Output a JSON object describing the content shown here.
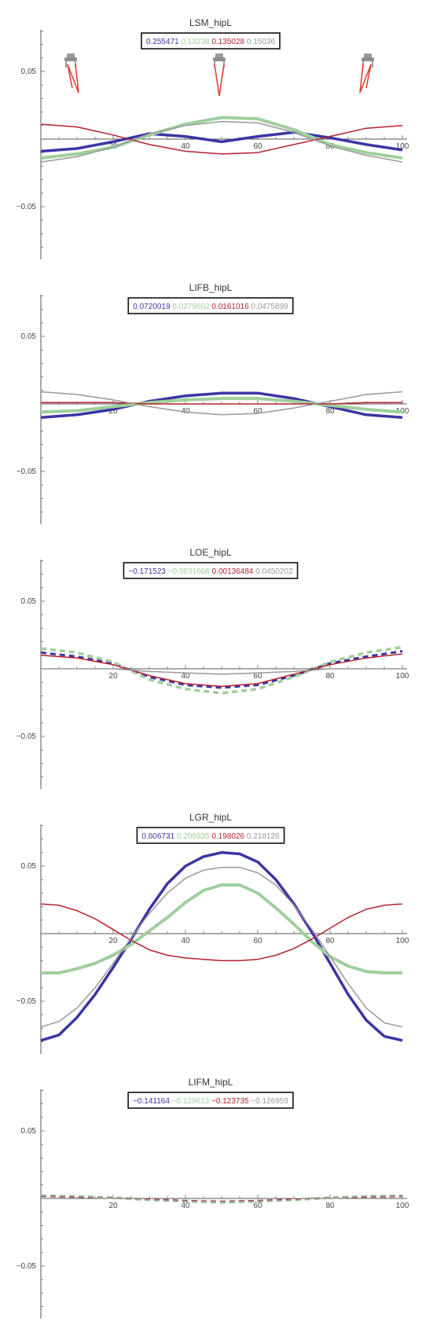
{
  "chart_data": [
    {
      "type": "line",
      "title": "LSM_hipL",
      "xlim": [
        0,
        100
      ],
      "ylim": [
        -0.085,
        0.085
      ],
      "xticks": [
        20,
        40,
        60,
        80,
        100
      ],
      "yticks": [
        -0.05,
        0.05
      ],
      "xtick_labels": [
        "20",
        "40",
        "60",
        "80",
        "100"
      ],
      "ytick_labels": [
        "−0.05",
        "0.05"
      ],
      "legend_values": [
        "0.255471",
        "0.13238",
        "0.135028",
        "0.15036"
      ],
      "has_figure_icons": true,
      "series": [
        {
          "color": "#3b35a4",
          "dashed": false,
          "width": 3.5,
          "x": [
            0,
            10,
            20,
            30,
            40,
            50,
            60,
            70,
            80,
            90,
            100
          ],
          "y": [
            -0.009,
            -0.007,
            -0.002,
            0.004,
            0.002,
            -0.002,
            0.002,
            0.005,
            0.001,
            -0.004,
            -0.008
          ]
        },
        {
          "color": "#9fcf9c",
          "dashed": false,
          "width": 4,
          "x": [
            0,
            10,
            20,
            30,
            40,
            50,
            60,
            70,
            80,
            90,
            100
          ],
          "y": [
            -0.014,
            -0.011,
            -0.006,
            0.003,
            0.011,
            0.016,
            0.015,
            0.007,
            -0.004,
            -0.01,
            -0.014
          ]
        },
        {
          "color": "#b5202d",
          "dashed": false,
          "width": 1.5,
          "x": [
            0,
            10,
            20,
            30,
            40,
            50,
            60,
            70,
            80,
            90,
            100
          ],
          "y": [
            0.011,
            0.009,
            0.003,
            -0.004,
            -0.009,
            -0.011,
            -0.01,
            -0.004,
            0.002,
            0.008,
            0.01
          ]
        },
        {
          "color": "#999999",
          "dashed": false,
          "width": 1.5,
          "x": [
            0,
            10,
            20,
            30,
            40,
            50,
            60,
            70,
            80,
            90,
            100
          ],
          "y": [
            -0.017,
            -0.013,
            -0.006,
            0.004,
            0.01,
            0.013,
            0.012,
            0.005,
            -0.005,
            -0.012,
            -0.017
          ]
        }
      ]
    },
    {
      "type": "line",
      "title": "LIFB_hipL",
      "xlim": [
        0,
        100
      ],
      "ylim": [
        -0.085,
        0.085
      ],
      "xticks": [
        20,
        40,
        60,
        80,
        100
      ],
      "yticks": [
        -0.05,
        0.05
      ],
      "xtick_labels": [
        "20",
        "40",
        "60",
        "80",
        "100"
      ],
      "ytick_labels": [
        "−0.05",
        "0.05"
      ],
      "legend_values": [
        "0.0720019",
        "0.0279602",
        "0.0161016",
        "0.0475899"
      ],
      "has_figure_icons": false,
      "series": [
        {
          "color": "#3b35a4",
          "dashed": false,
          "width": 3.5,
          "x": [
            0,
            10,
            20,
            30,
            40,
            50,
            60,
            70,
            80,
            90,
            100
          ],
          "y": [
            -0.01,
            -0.008,
            -0.004,
            0.002,
            0.006,
            0.008,
            0.008,
            0.004,
            -0.002,
            -0.008,
            -0.01
          ]
        },
        {
          "color": "#9fcf9c",
          "dashed": false,
          "width": 4,
          "x": [
            0,
            10,
            20,
            30,
            40,
            50,
            60,
            70,
            80,
            90,
            100
          ],
          "y": [
            -0.006,
            -0.005,
            -0.002,
            0.001,
            0.003,
            0.004,
            0.004,
            0.002,
            -0.001,
            -0.004,
            -0.006
          ]
        },
        {
          "color": "#b5202d",
          "dashed": false,
          "width": 1.5,
          "x": [
            0,
            10,
            20,
            30,
            40,
            50,
            60,
            70,
            80,
            90,
            100
          ],
          "y": [
            0.001,
            0.001,
            0.001,
            0.0,
            0.0,
            0.0,
            0.0,
            0.0,
            0.0,
            0.001,
            0.001
          ]
        },
        {
          "color": "#999999",
          "dashed": false,
          "width": 1.5,
          "x": [
            0,
            10,
            20,
            30,
            40,
            50,
            60,
            70,
            80,
            90,
            100
          ],
          "y": [
            0.009,
            0.007,
            0.003,
            -0.002,
            -0.006,
            -0.008,
            -0.007,
            -0.003,
            0.002,
            0.007,
            0.009
          ]
        }
      ]
    },
    {
      "type": "line",
      "title": "LOE_hipL",
      "xlim": [
        0,
        100
      ],
      "ylim": [
        -0.085,
        0.085
      ],
      "xticks": [
        20,
        40,
        60,
        80,
        100
      ],
      "yticks": [
        -0.05,
        0.05
      ],
      "xtick_labels": [
        "20",
        "40",
        "60",
        "80",
        "100"
      ],
      "ytick_labels": [
        "−0.05",
        "0.05"
      ],
      "legend_values": [
        "−0.171523",
        "−0.0831666",
        "0.00136484",
        "0.0450202"
      ],
      "has_figure_icons": false,
      "series": [
        {
          "color": "#3b35a4",
          "dashed": true,
          "width": 3,
          "x": [
            0,
            10,
            20,
            30,
            40,
            50,
            60,
            70,
            80,
            90,
            100
          ],
          "y": [
            0.012,
            0.009,
            0.004,
            -0.006,
            -0.012,
            -0.014,
            -0.012,
            -0.005,
            0.004,
            0.009,
            0.013
          ]
        },
        {
          "color": "#9fcf9c",
          "dashed": true,
          "width": 3.5,
          "x": [
            0,
            10,
            20,
            30,
            40,
            50,
            60,
            70,
            80,
            90,
            100
          ],
          "y": [
            0.015,
            0.012,
            0.005,
            -0.008,
            -0.015,
            -0.018,
            -0.015,
            -0.006,
            0.005,
            0.012,
            0.016
          ]
        },
        {
          "color": "#b5202d",
          "dashed": false,
          "width": 1.5,
          "x": [
            0,
            10,
            20,
            30,
            40,
            50,
            60,
            70,
            80,
            90,
            100
          ],
          "y": [
            0.01,
            0.008,
            0.003,
            -0.005,
            -0.011,
            -0.013,
            -0.011,
            -0.004,
            0.003,
            0.008,
            0.011
          ]
        },
        {
          "color": "#999999",
          "dashed": false,
          "width": 1.5,
          "x": [
            0,
            10,
            20,
            30,
            40,
            50,
            60,
            70,
            80,
            90,
            100
          ],
          "y": [
            0.0,
            0.0,
            0.0,
            -0.002,
            -0.003,
            -0.004,
            -0.003,
            -0.002,
            0.0,
            0.0,
            0.0
          ]
        }
      ]
    },
    {
      "type": "line",
      "title": "LGR_hipL",
      "xlim": [
        0,
        100
      ],
      "ylim": [
        -0.085,
        0.085
      ],
      "xticks": [
        20,
        40,
        60,
        80,
        100
      ],
      "yticks": [
        -0.05,
        0.05
      ],
      "xtick_labels": [
        "20",
        "40",
        "60",
        "80",
        "100"
      ],
      "ytick_labels": [
        "−0.05",
        "0.05"
      ],
      "legend_values": [
        "0.606731",
        "0.206935",
        "0.198026",
        "0.218126"
      ],
      "has_figure_icons": false,
      "series": [
        {
          "color": "#3b35a4",
          "dashed": false,
          "width": 3.5,
          "x": [
            0,
            5,
            10,
            15,
            20,
            25,
            30,
            35,
            40,
            45,
            50,
            55,
            60,
            65,
            70,
            75,
            80,
            85,
            90,
            95,
            100
          ],
          "y": [
            -0.079,
            -0.075,
            -0.062,
            -0.045,
            -0.025,
            -0.004,
            0.018,
            0.037,
            0.05,
            0.057,
            0.06,
            0.059,
            0.053,
            0.04,
            0.022,
            0.001,
            -0.022,
            -0.045,
            -0.064,
            -0.076,
            -0.079
          ]
        },
        {
          "color": "#9fcf9c",
          "dashed": false,
          "width": 4,
          "x": [
            0,
            5,
            10,
            15,
            20,
            25,
            30,
            35,
            40,
            45,
            50,
            55,
            60,
            65,
            70,
            75,
            80,
            85,
            90,
            95,
            100
          ],
          "y": [
            -0.029,
            -0.029,
            -0.026,
            -0.022,
            -0.016,
            -0.008,
            0.002,
            0.012,
            0.023,
            0.032,
            0.036,
            0.036,
            0.03,
            0.019,
            0.007,
            -0.006,
            -0.017,
            -0.024,
            -0.028,
            -0.029,
            -0.029
          ]
        },
        {
          "color": "#b5202d",
          "dashed": false,
          "width": 1.5,
          "x": [
            0,
            5,
            10,
            15,
            20,
            25,
            30,
            35,
            40,
            45,
            50,
            55,
            60,
            65,
            70,
            75,
            80,
            85,
            90,
            95,
            100
          ],
          "y": [
            0.022,
            0.021,
            0.017,
            0.011,
            0.003,
            -0.005,
            -0.012,
            -0.016,
            -0.018,
            -0.019,
            -0.02,
            -0.02,
            -0.019,
            -0.016,
            -0.011,
            -0.004,
            0.004,
            0.012,
            0.018,
            0.021,
            0.022
          ]
        },
        {
          "color": "#999999",
          "dashed": false,
          "width": 1.5,
          "x": [
            0,
            5,
            10,
            15,
            20,
            25,
            30,
            35,
            40,
            45,
            50,
            55,
            60,
            65,
            70,
            75,
            80,
            85,
            90,
            95,
            100
          ],
          "y": [
            -0.069,
            -0.065,
            -0.055,
            -0.04,
            -0.022,
            -0.003,
            0.015,
            0.03,
            0.041,
            0.047,
            0.049,
            0.049,
            0.045,
            0.036,
            0.021,
            0.003,
            -0.017,
            -0.037,
            -0.055,
            -0.066,
            -0.069
          ]
        }
      ]
    },
    {
      "type": "line",
      "title": "LIFM_hipL",
      "xlim": [
        0,
        100
      ],
      "ylim": [
        -0.085,
        0.085
      ],
      "xticks": [
        20,
        40,
        60,
        80,
        100
      ],
      "yticks": [
        -0.05,
        0.05
      ],
      "xtick_labels": [
        "20",
        "40",
        "60",
        "80",
        "100"
      ],
      "ytick_labels": [
        "−0.05",
        "0.05"
      ],
      "legend_values": [
        "−0.141164",
        "−0.129613",
        "−0.123735",
        "−0.126959"
      ],
      "has_figure_icons": false,
      "series": [
        {
          "color": "#3b35a4",
          "dashed": true,
          "width": 2,
          "x": [
            0,
            10,
            20,
            30,
            40,
            50,
            60,
            70,
            80,
            90,
            100
          ],
          "y": [
            0.002,
            0.0015,
            0.0005,
            -0.001,
            -0.002,
            -0.0025,
            -0.002,
            -0.001,
            0.0005,
            0.0015,
            0.002
          ]
        },
        {
          "color": "#9fcf9c",
          "dashed": true,
          "width": 3.5,
          "x": [
            0,
            10,
            20,
            30,
            40,
            50,
            60,
            70,
            80,
            90,
            100
          ],
          "y": [
            0.002,
            0.0015,
            0.0005,
            -0.001,
            -0.002,
            -0.003,
            -0.002,
            -0.001,
            0.0005,
            0.0015,
            0.002
          ]
        },
        {
          "color": "#b5202d",
          "dashed": true,
          "width": 1.5,
          "x": [
            0,
            10,
            20,
            30,
            40,
            50,
            60,
            70,
            80,
            90,
            100
          ],
          "y": [
            0.0015,
            0.001,
            0.0005,
            -0.0005,
            -0.0015,
            -0.002,
            -0.0015,
            -0.0005,
            0.0005,
            0.001,
            0.0015
          ]
        },
        {
          "color": "#999999",
          "dashed": true,
          "width": 1.5,
          "x": [
            0,
            10,
            20,
            30,
            40,
            50,
            60,
            70,
            80,
            90,
            100
          ],
          "y": [
            0.002,
            0.0015,
            0.0005,
            -0.001,
            -0.002,
            -0.0025,
            -0.002,
            -0.001,
            0.0005,
            0.0015,
            0.002
          ]
        }
      ]
    }
  ]
}
